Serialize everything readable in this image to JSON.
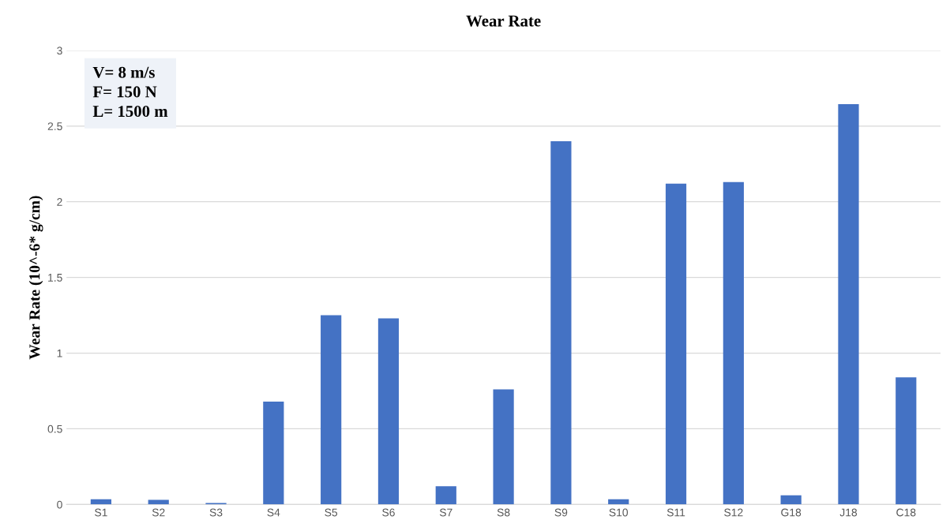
{
  "chart_data": {
    "type": "bar",
    "title": "Wear Rate",
    "ylabel": "Wear Rate (10^-6* g/cm)",
    "categories": [
      "S1",
      "S2",
      "S3",
      "S4",
      "S5",
      "S6",
      "S7",
      "S8",
      "S9",
      "S10",
      "S11",
      "S12",
      "G18",
      "J18",
      "C18"
    ],
    "values": [
      0.035,
      0.03,
      0.01,
      0.68,
      1.25,
      1.23,
      0.12,
      0.76,
      2.4,
      0.035,
      2.12,
      2.13,
      0.06,
      2.645,
      0.84
    ],
    "color": "#4472c4",
    "ylim": [
      0,
      3
    ],
    "yticks": [
      0,
      0.5,
      1,
      1.5,
      2,
      2.5,
      3
    ],
    "grid": "y",
    "annotations": [
      "V= 8 m/s",
      "F= 150 N",
      "L= 1500 m"
    ]
  }
}
